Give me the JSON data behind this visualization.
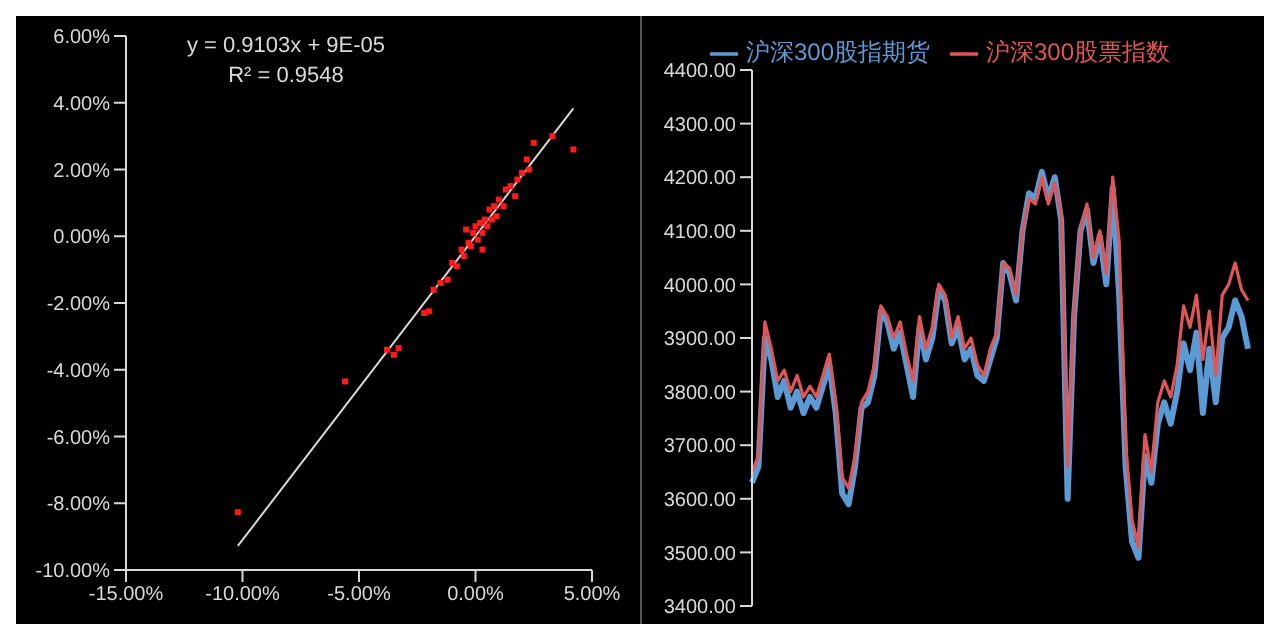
{
  "chart_data": [
    {
      "type": "scatter",
      "annotations": [
        "y = 0.9103x + 9E-05",
        "R² = 0.9548"
      ],
      "grid": false,
      "legend": false,
      "xlim": [
        -15,
        5
      ],
      "ylim": [
        -10,
        6
      ],
      "xticks": [
        {
          "value": -15,
          "label": "-15.00%"
        },
        {
          "value": -10,
          "label": "-10.00%"
        },
        {
          "value": -5,
          "label": "-5.00%"
        },
        {
          "value": 0,
          "label": "0.00%"
        },
        {
          "value": 5,
          "label": "5.00%"
        }
      ],
      "yticks": [
        {
          "value": -10,
          "label": "-10.00%"
        },
        {
          "value": -8,
          "label": "-8.00%"
        },
        {
          "value": -6,
          "label": "-6.00%"
        },
        {
          "value": -4,
          "label": "-4.00%"
        },
        {
          "value": -2,
          "label": "-2.00%"
        },
        {
          "value": 0,
          "label": "0.00%"
        },
        {
          "value": 2,
          "label": "2.00%"
        },
        {
          "value": 4,
          "label": "4.00%"
        },
        {
          "value": 6,
          "label": "6.00%"
        }
      ],
      "series": [
        {
          "type": "scatter",
          "marker": "square",
          "color": "#ff1a1a",
          "x": [
            -10.2,
            -5.6,
            -3.8,
            -3.3,
            -3.5,
            -2.2,
            -2.0,
            -1.8,
            -1.5,
            -1.2,
            -1.0,
            -0.8,
            -0.6,
            -0.5,
            -0.3,
            -0.2,
            -0.1,
            0,
            0.1,
            0.2,
            0.3,
            0.4,
            0.5,
            0.6,
            0.7,
            0.8,
            0.9,
            1.0,
            1.2,
            1.3,
            1.5,
            1.7,
            1.8,
            2.0,
            2.2,
            2.3,
            2.5,
            3.3,
            4.2,
            0.3,
            -0.4
          ],
          "values": [
            -8.27,
            -4.35,
            -3.4,
            -3.35,
            -3.55,
            -2.3,
            -2.25,
            -1.6,
            -1.4,
            -1.3,
            -0.8,
            -0.9,
            -0.4,
            -0.6,
            -0.2,
            -0.3,
            0.1,
            0.3,
            -0.1,
            0.4,
            0.1,
            0.5,
            0.3,
            0.8,
            0.5,
            0.9,
            0.6,
            1.1,
            0.9,
            1.4,
            1.5,
            1.2,
            1.7,
            1.9,
            2.3,
            2.0,
            2.8,
            3.0,
            2.6,
            -0.4,
            0.2
          ]
        },
        {
          "type": "line",
          "marker": "none",
          "color": "#d9d9d9",
          "x": [
            -10.2,
            4.2
          ],
          "values": [
            -9.28,
            3.83
          ]
        }
      ]
    },
    {
      "type": "line",
      "legend": "top",
      "grid": false,
      "tick_labels": "y",
      "marker": "none",
      "ylim": [
        3400,
        4400
      ],
      "yticks": [
        {
          "value": 3400,
          "label": "3400.00"
        },
        {
          "value": 3500,
          "label": "3500.00"
        },
        {
          "value": 3600,
          "label": "3600.00"
        },
        {
          "value": 3700,
          "label": "3700.00"
        },
        {
          "value": 3800,
          "label": "3800.00"
        },
        {
          "value": 3900,
          "label": "3900.00"
        },
        {
          "value": 4000,
          "label": "4000.00"
        },
        {
          "value": 4100,
          "label": "4100.00"
        },
        {
          "value": 4200,
          "label": "4200.00"
        },
        {
          "value": 4300,
          "label": "4300.00"
        },
        {
          "value": 4400,
          "label": "4400.00"
        }
      ],
      "categories": [
        null,
        null,
        null,
        null,
        null,
        null,
        null,
        null,
        null,
        null,
        null,
        null,
        null,
        null,
        null,
        null,
        null,
        null,
        null,
        null,
        null,
        null,
        null,
        null,
        null,
        null,
        null,
        null,
        null,
        null,
        null,
        null,
        null,
        null,
        null,
        null,
        null,
        null,
        null,
        null,
        null,
        null,
        null,
        null,
        null,
        null,
        null,
        null,
        null,
        null,
        null,
        null,
        null,
        null,
        null,
        null,
        null,
        null,
        null,
        null,
        null,
        null,
        null,
        null,
        null,
        null,
        null,
        null,
        null,
        null,
        null,
        null,
        null,
        null,
        null,
        null,
        null,
        null
      ],
      "series": [
        {
          "name": "沪深300股指期货",
          "color": "#5b9bd5",
          "values": [
            3630,
            3660,
            3900,
            3860,
            3790,
            3820,
            3770,
            3800,
            3760,
            3790,
            3770,
            3810,
            3850,
            3760,
            3610,
            3590,
            3660,
            3770,
            3780,
            3830,
            3950,
            3930,
            3880,
            3910,
            3850,
            3790,
            3920,
            3860,
            3900,
            3990,
            3970,
            3890,
            3920,
            3860,
            3880,
            3830,
            3820,
            3860,
            3900,
            4040,
            4020,
            3970,
            4100,
            4170,
            4160,
            4210,
            4160,
            4200,
            4120,
            3600,
            3940,
            4100,
            4140,
            4040,
            4090,
            4000,
            4180,
            3980,
            3660,
            3520,
            3490,
            3680,
            3630,
            3740,
            3780,
            3740,
            3800,
            3890,
            3840,
            3910,
            3760,
            3880,
            3780,
            3900,
            3920,
            3970,
            3940,
            3880
          ]
        },
        {
          "name": "沪深300股票指数",
          "color": "#e05555",
          "values": [
            3650,
            3680,
            3930,
            3880,
            3820,
            3840,
            3800,
            3830,
            3790,
            3810,
            3790,
            3830,
            3870,
            3780,
            3640,
            3620,
            3680,
            3780,
            3800,
            3850,
            3960,
            3940,
            3900,
            3930,
            3870,
            3820,
            3940,
            3880,
            3920,
            4000,
            3980,
            3900,
            3940,
            3880,
            3900,
            3850,
            3830,
            3880,
            3910,
            4040,
            4030,
            3980,
            4100,
            4160,
            4150,
            4200,
            4150,
            4190,
            4130,
            3660,
            3950,
            4100,
            4150,
            4050,
            4100,
            4020,
            4200,
            4080,
            3700,
            3560,
            3510,
            3720,
            3650,
            3780,
            3820,
            3790,
            3850,
            3960,
            3920,
            3980,
            3860,
            3950,
            3830,
            3980,
            4000,
            4040,
            3990,
            3970
          ]
        }
      ]
    }
  ]
}
